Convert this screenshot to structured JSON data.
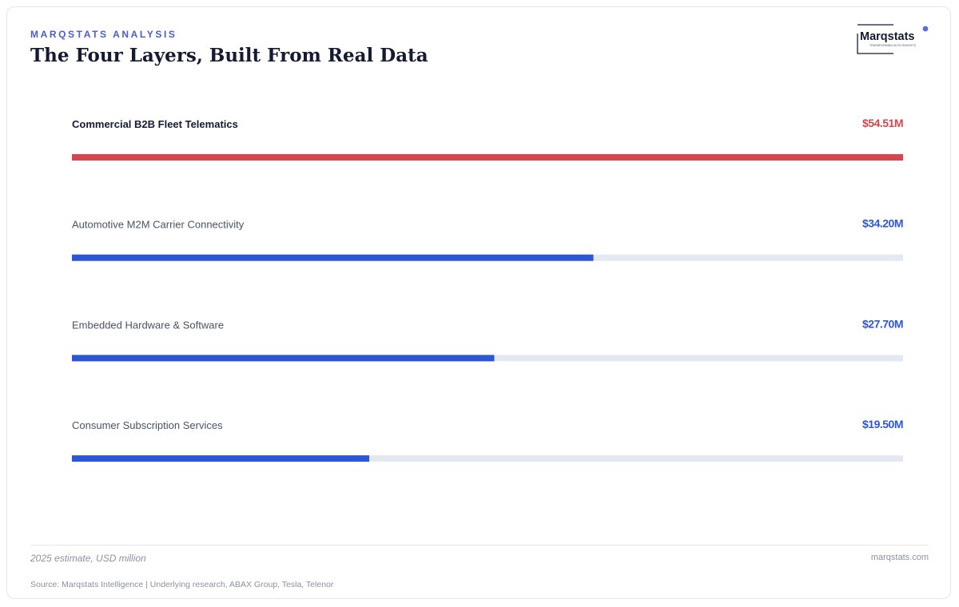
{
  "header": {
    "eyebrow": "MARQSTATS ANALYSIS",
    "title": "The Four Layers, Built From Real Data"
  },
  "logo": {
    "wordmark": "Marqstats",
    "tagline": "TRANSFORMING AUTO INSIGHTS"
  },
  "chart_data": {
    "type": "bar",
    "orientation": "horizontal",
    "categories": [
      "Commercial B2B Fleet Telematics",
      "Automotive M2M Carrier Connectivity",
      "Embedded Hardware & Software",
      "Consumer Subscription Services"
    ],
    "values": [
      54.51,
      34.2,
      27.7,
      19.5
    ],
    "value_labels": [
      "$54.51M",
      "$34.20M",
      "$27.70M",
      "$19.50M"
    ],
    "xlim": [
      0,
      54.51
    ],
    "highlight_index": 0,
    "colors": {
      "highlight": "#d4474f",
      "bar": "#2d56d6",
      "track": "#e4e8f1"
    },
    "grid": false
  },
  "footer": {
    "note": "2025 estimate, USD million",
    "site": "marqstats.com",
    "source": "Source: Marqstats Intelligence | Underlying research, ABAX Group, Tesla, Telenor"
  }
}
